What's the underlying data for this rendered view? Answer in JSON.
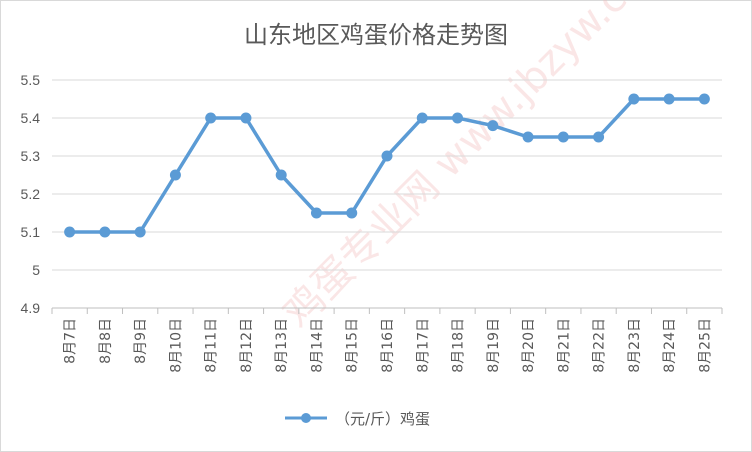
{
  "chart_data": {
    "type": "line",
    "title": "山东地区鸡蛋价格走势图",
    "categories": [
      "8月7日",
      "8月8日",
      "8月9日",
      "8月10日",
      "8月11日",
      "8月12日",
      "8月13日",
      "8月14日",
      "8月15日",
      "8月16日",
      "8月17日",
      "8月18日",
      "8月19日",
      "8月20日",
      "8月21日",
      "8月22日",
      "8月23日",
      "8月24日",
      "8月25日"
    ],
    "series": [
      {
        "name": "（元/斤）鸡蛋",
        "values": [
          5.1,
          5.1,
          5.1,
          5.25,
          5.4,
          5.4,
          5.25,
          5.15,
          5.15,
          5.3,
          5.4,
          5.4,
          5.38,
          5.35,
          5.35,
          5.35,
          5.45,
          5.45,
          5.45
        ],
        "color": "#5b9bd5"
      }
    ],
    "yticks": [
      "4.9",
      "5",
      "5.1",
      "5.2",
      "5.3",
      "5.4",
      "5.5"
    ],
    "ylim": [
      4.9,
      5.5
    ],
    "grid": true,
    "legend_position": "bottom"
  },
  "watermark": "鸡蛋专业网 www.jbzyw.com"
}
